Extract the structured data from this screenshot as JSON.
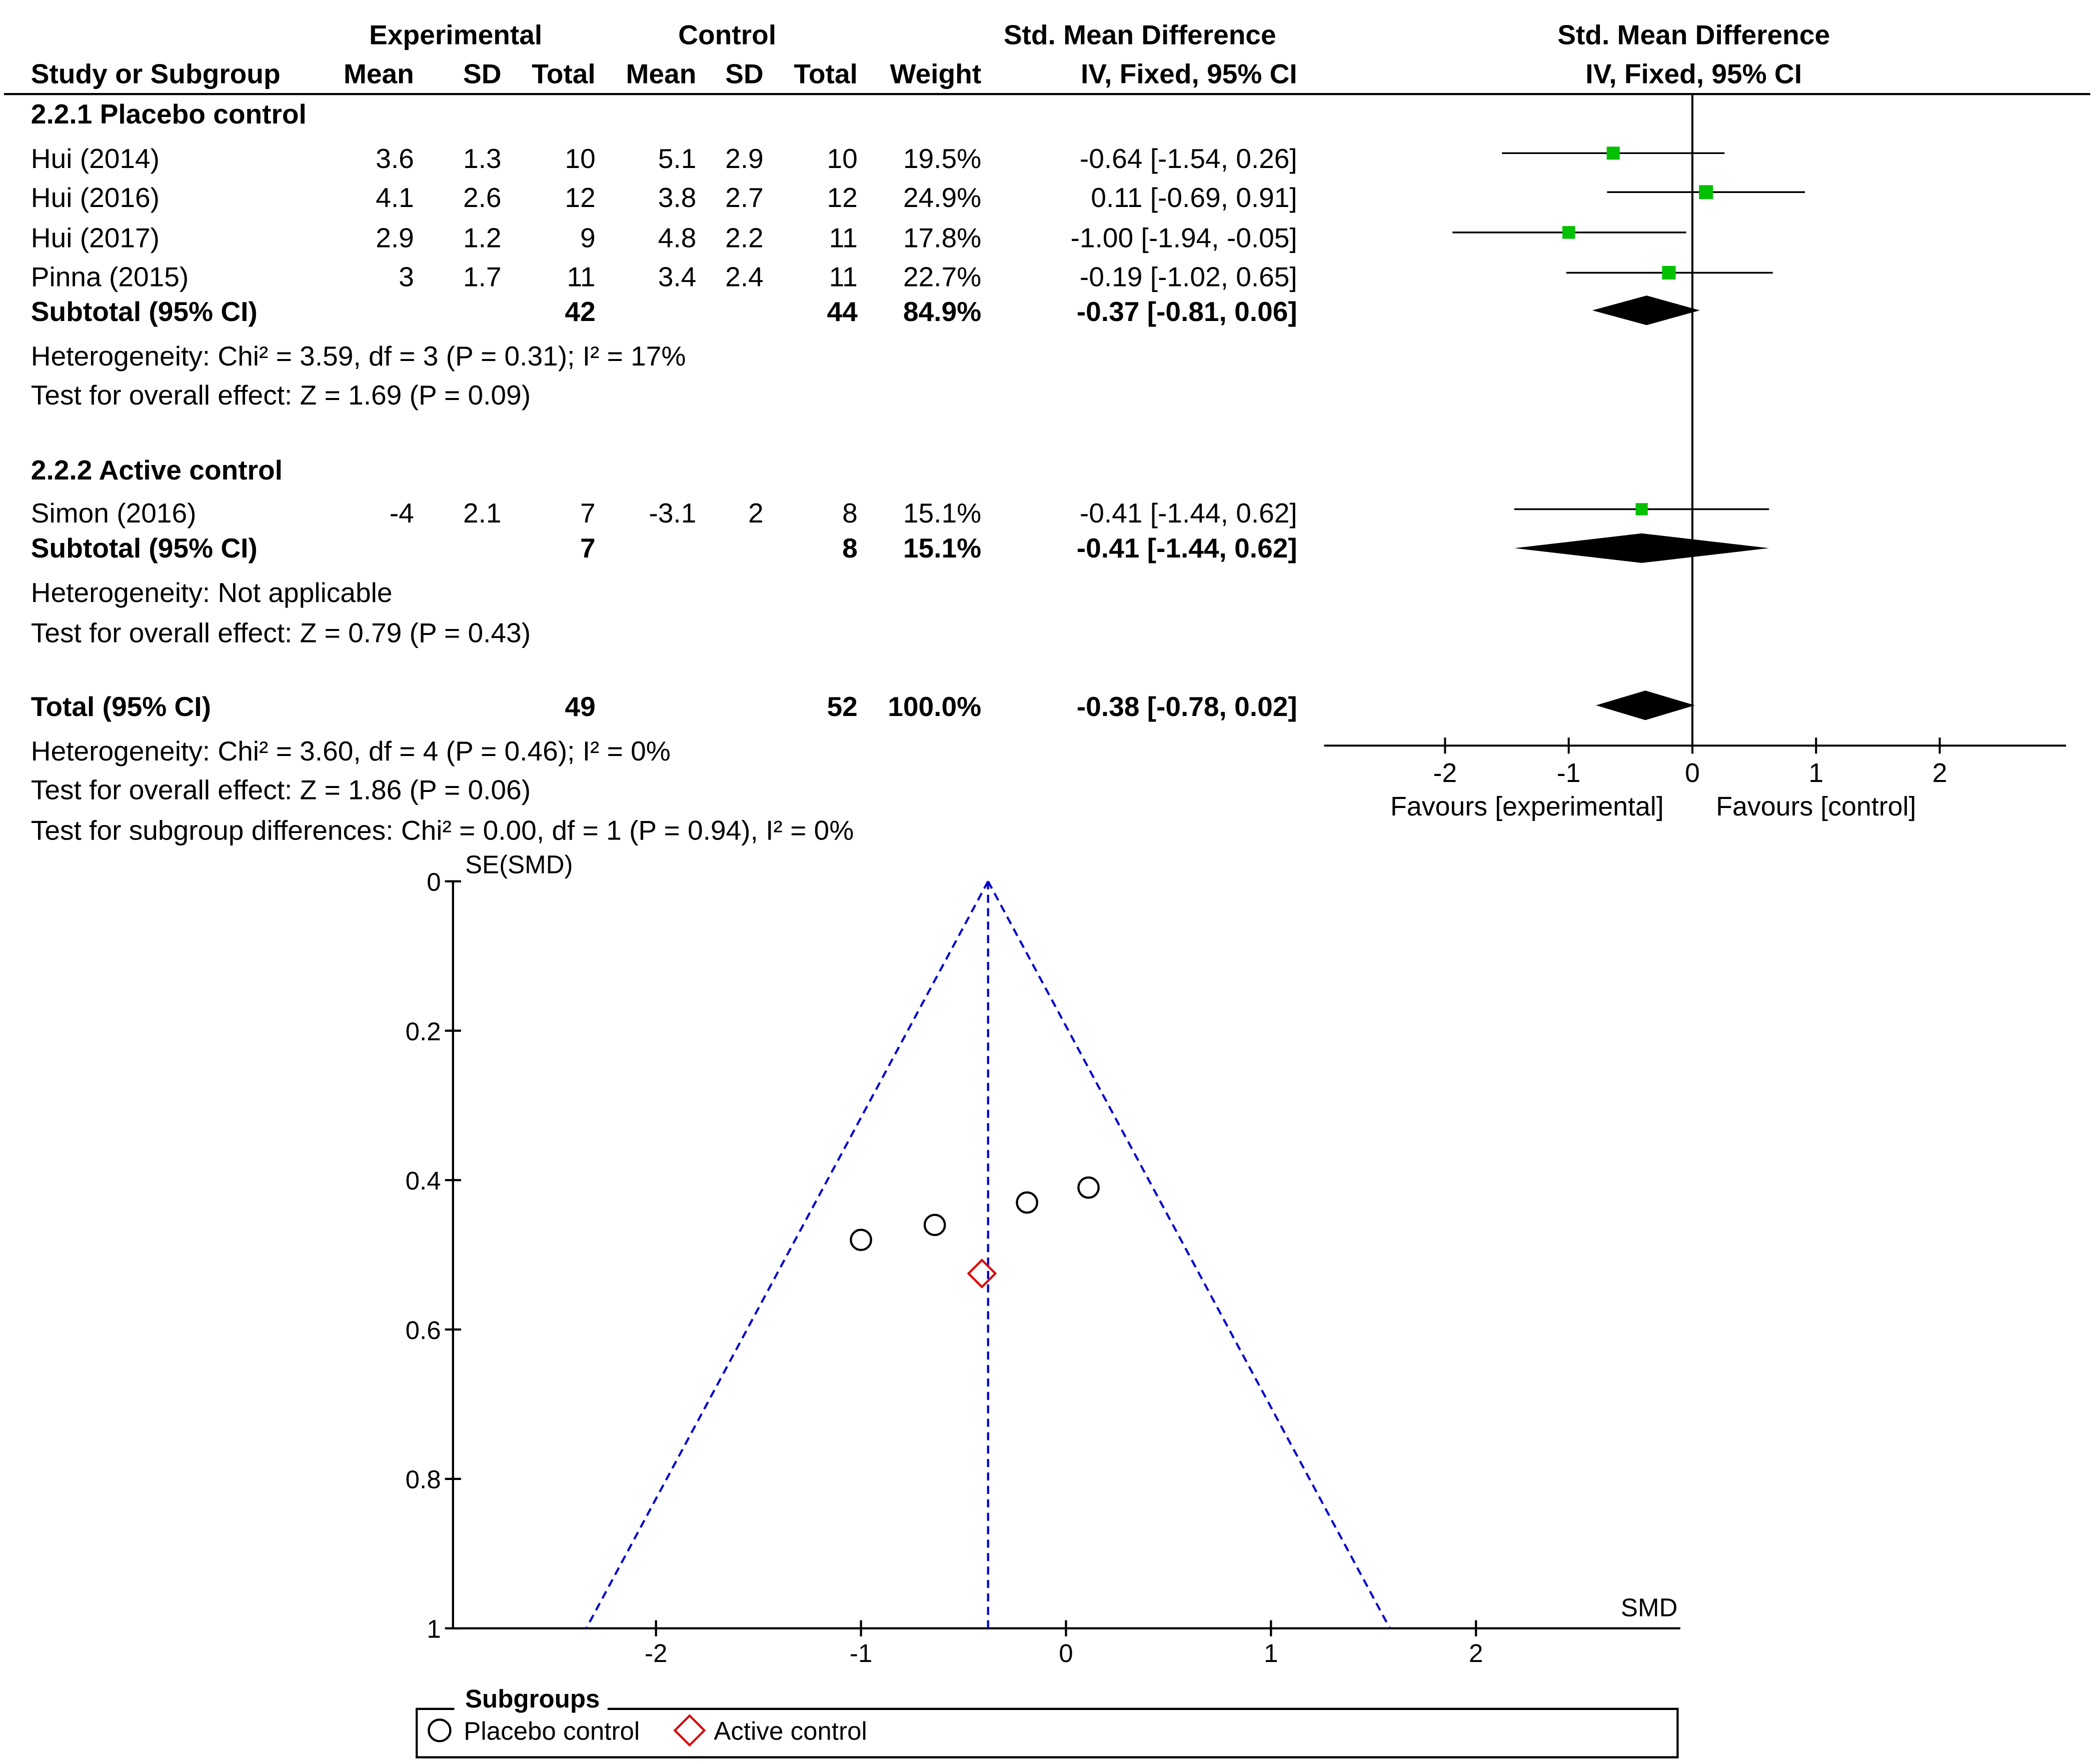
{
  "forest": {
    "group_headers": {
      "experimental": "Experimental",
      "control": "Control",
      "smd_table": "Std. Mean Difference",
      "smd_plot": "Std. Mean Difference"
    },
    "columns": {
      "study": "Study or Subgroup",
      "exp_mean": "Mean",
      "exp_sd": "SD",
      "exp_total": "Total",
      "ctl_mean": "Mean",
      "ctl_sd": "SD",
      "ctl_total": "Total",
      "weight": "Weight",
      "ci_table": "IV, Fixed, 95% CI",
      "ci_plot": "IV, Fixed, 95% CI"
    },
    "subgroups": [
      {
        "title": "2.2.1 Placebo control",
        "studies": [
          {
            "name": "Hui (2014)",
            "exp_mean": "3.6",
            "exp_sd": "1.3",
            "exp_total": "10",
            "ctl_mean": "5.1",
            "ctl_sd": "2.9",
            "ctl_total": "10",
            "weight": "19.5%",
            "ci": "-0.64 [-1.54, 0.26]",
            "smd": -0.64,
            "lo": -1.54,
            "hi": 0.26,
            "w": 19.5
          },
          {
            "name": "Hui (2016)",
            "exp_mean": "4.1",
            "exp_sd": "2.6",
            "exp_total": "12",
            "ctl_mean": "3.8",
            "ctl_sd": "2.7",
            "ctl_total": "12",
            "weight": "24.9%",
            "ci": "0.11 [-0.69, 0.91]",
            "smd": 0.11,
            "lo": -0.69,
            "hi": 0.91,
            "w": 24.9
          },
          {
            "name": "Hui (2017)",
            "exp_mean": "2.9",
            "exp_sd": "1.2",
            "exp_total": "9",
            "ctl_mean": "4.8",
            "ctl_sd": "2.2",
            "ctl_total": "11",
            "weight": "17.8%",
            "ci": "-1.00 [-1.94, -0.05]",
            "smd": -1.0,
            "lo": -1.94,
            "hi": -0.05,
            "w": 17.8
          },
          {
            "name": "Pinna (2015)",
            "exp_mean": "3",
            "exp_sd": "1.7",
            "exp_total": "11",
            "ctl_mean": "3.4",
            "ctl_sd": "2.4",
            "ctl_total": "11",
            "weight": "22.7%",
            "ci": "-0.19 [-1.02, 0.65]",
            "smd": -0.19,
            "lo": -1.02,
            "hi": 0.65,
            "w": 22.7
          }
        ],
        "subtotal": {
          "label": "Subtotal (95% CI)",
          "exp_total": "42",
          "ctl_total": "44",
          "weight": "84.9%",
          "ci": "-0.37 [-0.81, 0.06]",
          "smd": -0.37,
          "lo": -0.81,
          "hi": 0.06
        },
        "heterogeneity": "Heterogeneity: Chi² = 3.59, df = 3 (P = 0.31); I² = 17%",
        "overall_effect": "Test for overall effect: Z = 1.69 (P = 0.09)"
      },
      {
        "title": "2.2.2 Active control",
        "studies": [
          {
            "name": "Simon (2016)",
            "exp_mean": "-4",
            "exp_sd": "2.1",
            "exp_total": "7",
            "ctl_mean": "-3.1",
            "ctl_sd": "2",
            "ctl_total": "8",
            "weight": "15.1%",
            "ci": "-0.41 [-1.44, 0.62]",
            "smd": -0.41,
            "lo": -1.44,
            "hi": 0.62,
            "w": 15.1
          }
        ],
        "subtotal": {
          "label": "Subtotal (95% CI)",
          "exp_total": "7",
          "ctl_total": "8",
          "weight": "15.1%",
          "ci": "-0.41 [-1.44, 0.62]",
          "smd": -0.41,
          "lo": -1.44,
          "hi": 0.62
        },
        "heterogeneity": "Heterogeneity: Not applicable",
        "overall_effect": "Test for overall effect: Z = 0.79 (P = 0.43)"
      }
    ],
    "total": {
      "label": "Total (95% CI)",
      "exp_total": "49",
      "ctl_total": "52",
      "weight": "100.0%",
      "ci": "-0.38 [-0.78, 0.02]",
      "smd": -0.38,
      "lo": -0.78,
      "hi": 0.02,
      "heterogeneity": "Heterogeneity: Chi² = 3.60, df = 4 (P = 0.46); I² = 0%",
      "overall_effect": "Test for overall effect: Z = 1.86 (P = 0.06)",
      "subgroup_differences": "Test for subgroup differences: Chi² = 0.00, df = 1 (P = 0.94), I² = 0%"
    },
    "axis": {
      "ticks": [
        -2,
        -1,
        0,
        1,
        2
      ],
      "tick_labels": [
        "-2",
        "-1",
        "0",
        "1",
        "2"
      ],
      "left_label": "Favours [experimental]",
      "right_label": "Favours [control]"
    },
    "colors": {
      "square": "#00c000",
      "diamond": "#000000"
    }
  },
  "chart_data": [
    {
      "type": "forest",
      "x_range": [
        -2,
        2
      ],
      "effect_measure": "Std. Mean Difference, IV, Fixed, 95% CI",
      "studies": [
        {
          "name": "Hui (2014)",
          "subgroup": "2.2.1 Placebo control",
          "smd": -0.64,
          "ci": [
            -1.54,
            0.26
          ],
          "weight": 19.5
        },
        {
          "name": "Hui (2016)",
          "subgroup": "2.2.1 Placebo control",
          "smd": 0.11,
          "ci": [
            -0.69,
            0.91
          ],
          "weight": 24.9
        },
        {
          "name": "Hui (2017)",
          "subgroup": "2.2.1 Placebo control",
          "smd": -1.0,
          "ci": [
            -1.94,
            -0.05
          ],
          "weight": 17.8
        },
        {
          "name": "Pinna (2015)",
          "subgroup": "2.2.1 Placebo control",
          "smd": -0.19,
          "ci": [
            -1.02,
            0.65
          ],
          "weight": 22.7
        },
        {
          "name": "Simon (2016)",
          "subgroup": "2.2.2 Active control",
          "smd": -0.41,
          "ci": [
            -1.44,
            0.62
          ],
          "weight": 15.1
        }
      ],
      "subtotals": [
        {
          "subgroup": "2.2.1 Placebo control",
          "smd": -0.37,
          "ci": [
            -0.81,
            0.06
          ]
        },
        {
          "subgroup": "2.2.2 Active control",
          "smd": -0.41,
          "ci": [
            -1.44,
            0.62
          ]
        }
      ],
      "total": {
        "smd": -0.38,
        "ci": [
          -0.78,
          0.02
        ]
      }
    },
    {
      "type": "scatter",
      "xlabel": "SMD",
      "ylabel": "SE(SMD)",
      "xlim": [
        -3,
        3
      ],
      "ylim": [
        0,
        1
      ],
      "y_reversed": true,
      "x_ticks": [
        "-2",
        "-1",
        "0",
        "1",
        "2"
      ],
      "y_ticks": [
        "0",
        "0.2",
        "0.4",
        "0.6",
        "0.8",
        "1"
      ],
      "pooled_smd": -0.38,
      "funnel": "dashed lines at 95% limits around pooled SMD",
      "funnel_color": "#0000cc",
      "legend": {
        "title": "Subgroups",
        "position": "bottom"
      },
      "series": [
        {
          "name": "Placebo control",
          "marker": "circle",
          "color": "#000000",
          "points": [
            {
              "x": -1.0,
              "y": 0.48
            },
            {
              "x": -0.64,
              "y": 0.46
            },
            {
              "x": -0.19,
              "y": 0.43
            },
            {
              "x": 0.11,
              "y": 0.41
            }
          ]
        },
        {
          "name": "Active control",
          "marker": "diamond",
          "color": "#dd0000",
          "points": [
            {
              "x": -0.41,
              "y": 0.525
            }
          ]
        }
      ]
    }
  ]
}
